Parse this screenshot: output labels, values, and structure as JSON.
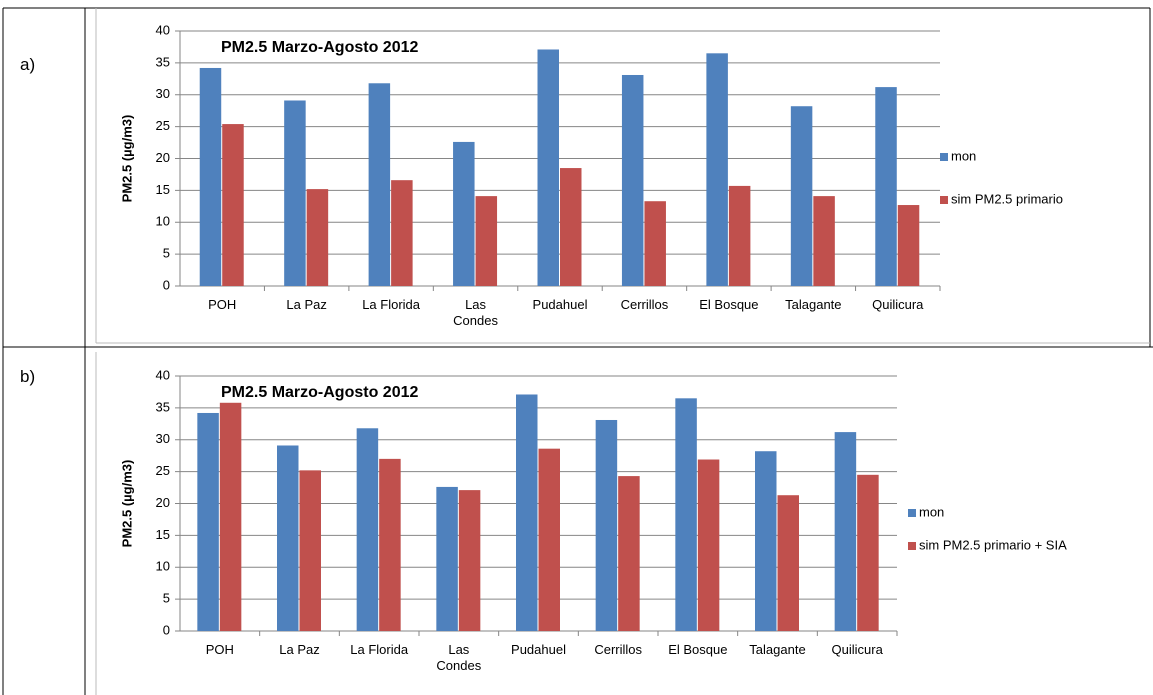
{
  "panels": [
    "a)",
    "b)"
  ],
  "chart_data": [
    {
      "type": "bar",
      "title": "PM2.5 Marzo-Agosto 2012",
      "y_label": "PM2.5  (µg/m3)",
      "categories": [
        "POH",
        "La Paz",
        "La Florida",
        "Las Condes",
        "Pudahuel",
        "Cerrillos",
        "El Bosque",
        "Talagante",
        "Quilicura"
      ],
      "series": [
        {
          "name": "mon",
          "color": "#4f81bd",
          "values": [
            34.2,
            29.1,
            31.8,
            22.6,
            37.1,
            33.1,
            36.5,
            28.2,
            31.2
          ]
        },
        {
          "name": "sim PM2.5 primario",
          "color": "#c0504d",
          "values": [
            25.4,
            15.2,
            16.6,
            14.1,
            18.5,
            13.3,
            15.7,
            14.1,
            12.7
          ]
        }
      ],
      "ylim": [
        0,
        40
      ],
      "yticks": [
        0,
        5,
        10,
        15,
        20,
        25,
        30,
        35,
        40
      ],
      "grid": true,
      "legend": "right"
    },
    {
      "type": "bar",
      "title": "PM2.5 Marzo-Agosto 2012",
      "y_label": "PM2.5  (µg/m3)",
      "categories": [
        "POH",
        "La Paz",
        "La Florida",
        "Las Condes",
        "Pudahuel",
        "Cerrillos",
        "El Bosque",
        "Talagante",
        "Quilicura"
      ],
      "series": [
        {
          "name": "mon",
          "color": "#4f81bd",
          "values": [
            34.2,
            29.1,
            31.8,
            22.6,
            37.1,
            33.1,
            36.5,
            28.2,
            31.2
          ]
        },
        {
          "name": "sim PM2.5 primario + SIA",
          "color": "#c0504d",
          "values": [
            35.8,
            25.2,
            27.0,
            22.1,
            28.6,
            24.3,
            26.9,
            21.3,
            24.5
          ]
        }
      ],
      "ylim": [
        0,
        40
      ],
      "yticks": [
        0,
        5,
        10,
        15,
        20,
        25,
        30,
        35,
        40
      ],
      "grid": true,
      "legend": "right"
    }
  ]
}
